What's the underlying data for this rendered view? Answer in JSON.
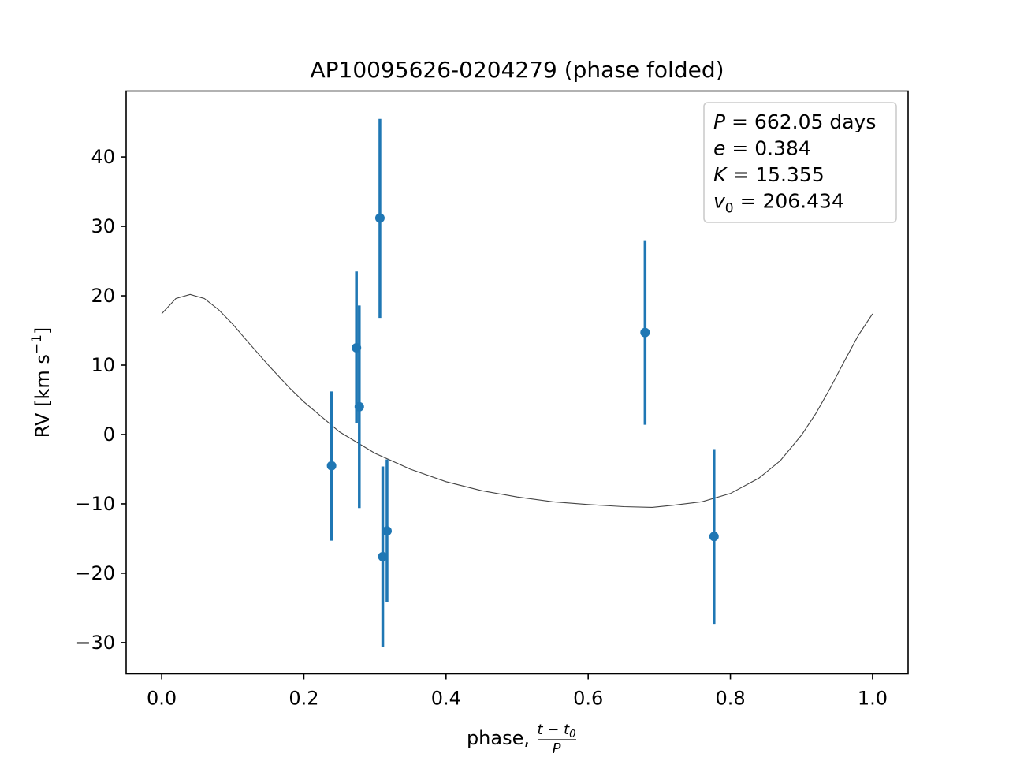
{
  "chart_data": {
    "type": "scatter",
    "title": "AP10095626-0204279 (phase folded)",
    "xlabel": "phase,",
    "xlabel_fraction": {
      "numerator": "t − t",
      "numerator_sub": "0",
      "denominator": "P"
    },
    "ylabel": "RV [km s",
    "ylabel_sup": "−1",
    "ylabel_close": "]",
    "xlim": [
      -0.05,
      1.05
    ],
    "ylim": [
      -34.5,
      49.5
    ],
    "xticks": [
      0.0,
      0.2,
      0.4,
      0.6,
      0.8,
      1.0
    ],
    "xtick_labels": [
      "0.0",
      "0.2",
      "0.4",
      "0.6",
      "0.8",
      "1.0"
    ],
    "yticks": [
      -30,
      -20,
      -10,
      0,
      10,
      20,
      30,
      40
    ],
    "ytick_labels": [
      "−30",
      "−20",
      "−10",
      "0",
      "10",
      "20",
      "30",
      "40"
    ],
    "grid": false,
    "legend_position": "top-right",
    "legend": [
      {
        "var": "P",
        "sub": "",
        "rest": " = 662.05 days"
      },
      {
        "var": "e",
        "sub": "",
        "rest": " = 0.384"
      },
      {
        "var": "K",
        "sub": "",
        "rest": " = 15.355"
      },
      {
        "var": "v",
        "sub": "0",
        "rest": " = 206.434"
      }
    ],
    "points": [
      {
        "x": 0.239,
        "y": -4.5,
        "yerr_low": -15.3,
        "yerr_high": 6.2
      },
      {
        "x": 0.274,
        "y": 12.5,
        "yerr_low": 1.7,
        "yerr_high": 23.5
      },
      {
        "x": 0.278,
        "y": 4.0,
        "yerr_low": -10.6,
        "yerr_high": 18.6
      },
      {
        "x": 0.307,
        "y": 31.2,
        "yerr_low": 16.8,
        "yerr_high": 45.5
      },
      {
        "x": 0.311,
        "y": -17.6,
        "yerr_low": -30.6,
        "yerr_high": -4.6
      },
      {
        "x": 0.317,
        "y": -13.9,
        "yerr_low": -24.2,
        "yerr_high": -3.6
      },
      {
        "x": 0.68,
        "y": 14.7,
        "yerr_low": 1.4,
        "yerr_high": 28.0
      },
      {
        "x": 0.777,
        "y": -14.7,
        "yerr_low": -27.3,
        "yerr_high": -2.1
      }
    ],
    "model_curve": {
      "x": [
        0.0,
        0.02,
        0.04,
        0.06,
        0.08,
        0.1,
        0.12,
        0.15,
        0.18,
        0.2,
        0.25,
        0.3,
        0.35,
        0.4,
        0.45,
        0.5,
        0.55,
        0.6,
        0.65,
        0.69,
        0.72,
        0.76,
        0.8,
        0.84,
        0.87,
        0.9,
        0.92,
        0.94,
        0.96,
        0.98,
        1.0
      ],
      "y": [
        17.4,
        19.6,
        20.2,
        19.6,
        18.0,
        15.9,
        13.5,
        10.0,
        6.7,
        4.7,
        0.4,
        -2.7,
        -5.0,
        -6.8,
        -8.1,
        -9.0,
        -9.7,
        -10.1,
        -10.4,
        -10.5,
        -10.2,
        -9.7,
        -8.5,
        -6.3,
        -3.8,
        -0.1,
        3.0,
        6.6,
        10.5,
        14.3,
        17.4
      ]
    },
    "colors": {
      "points": "#1f77b4",
      "model": "#444444",
      "axes": "#000000"
    }
  }
}
